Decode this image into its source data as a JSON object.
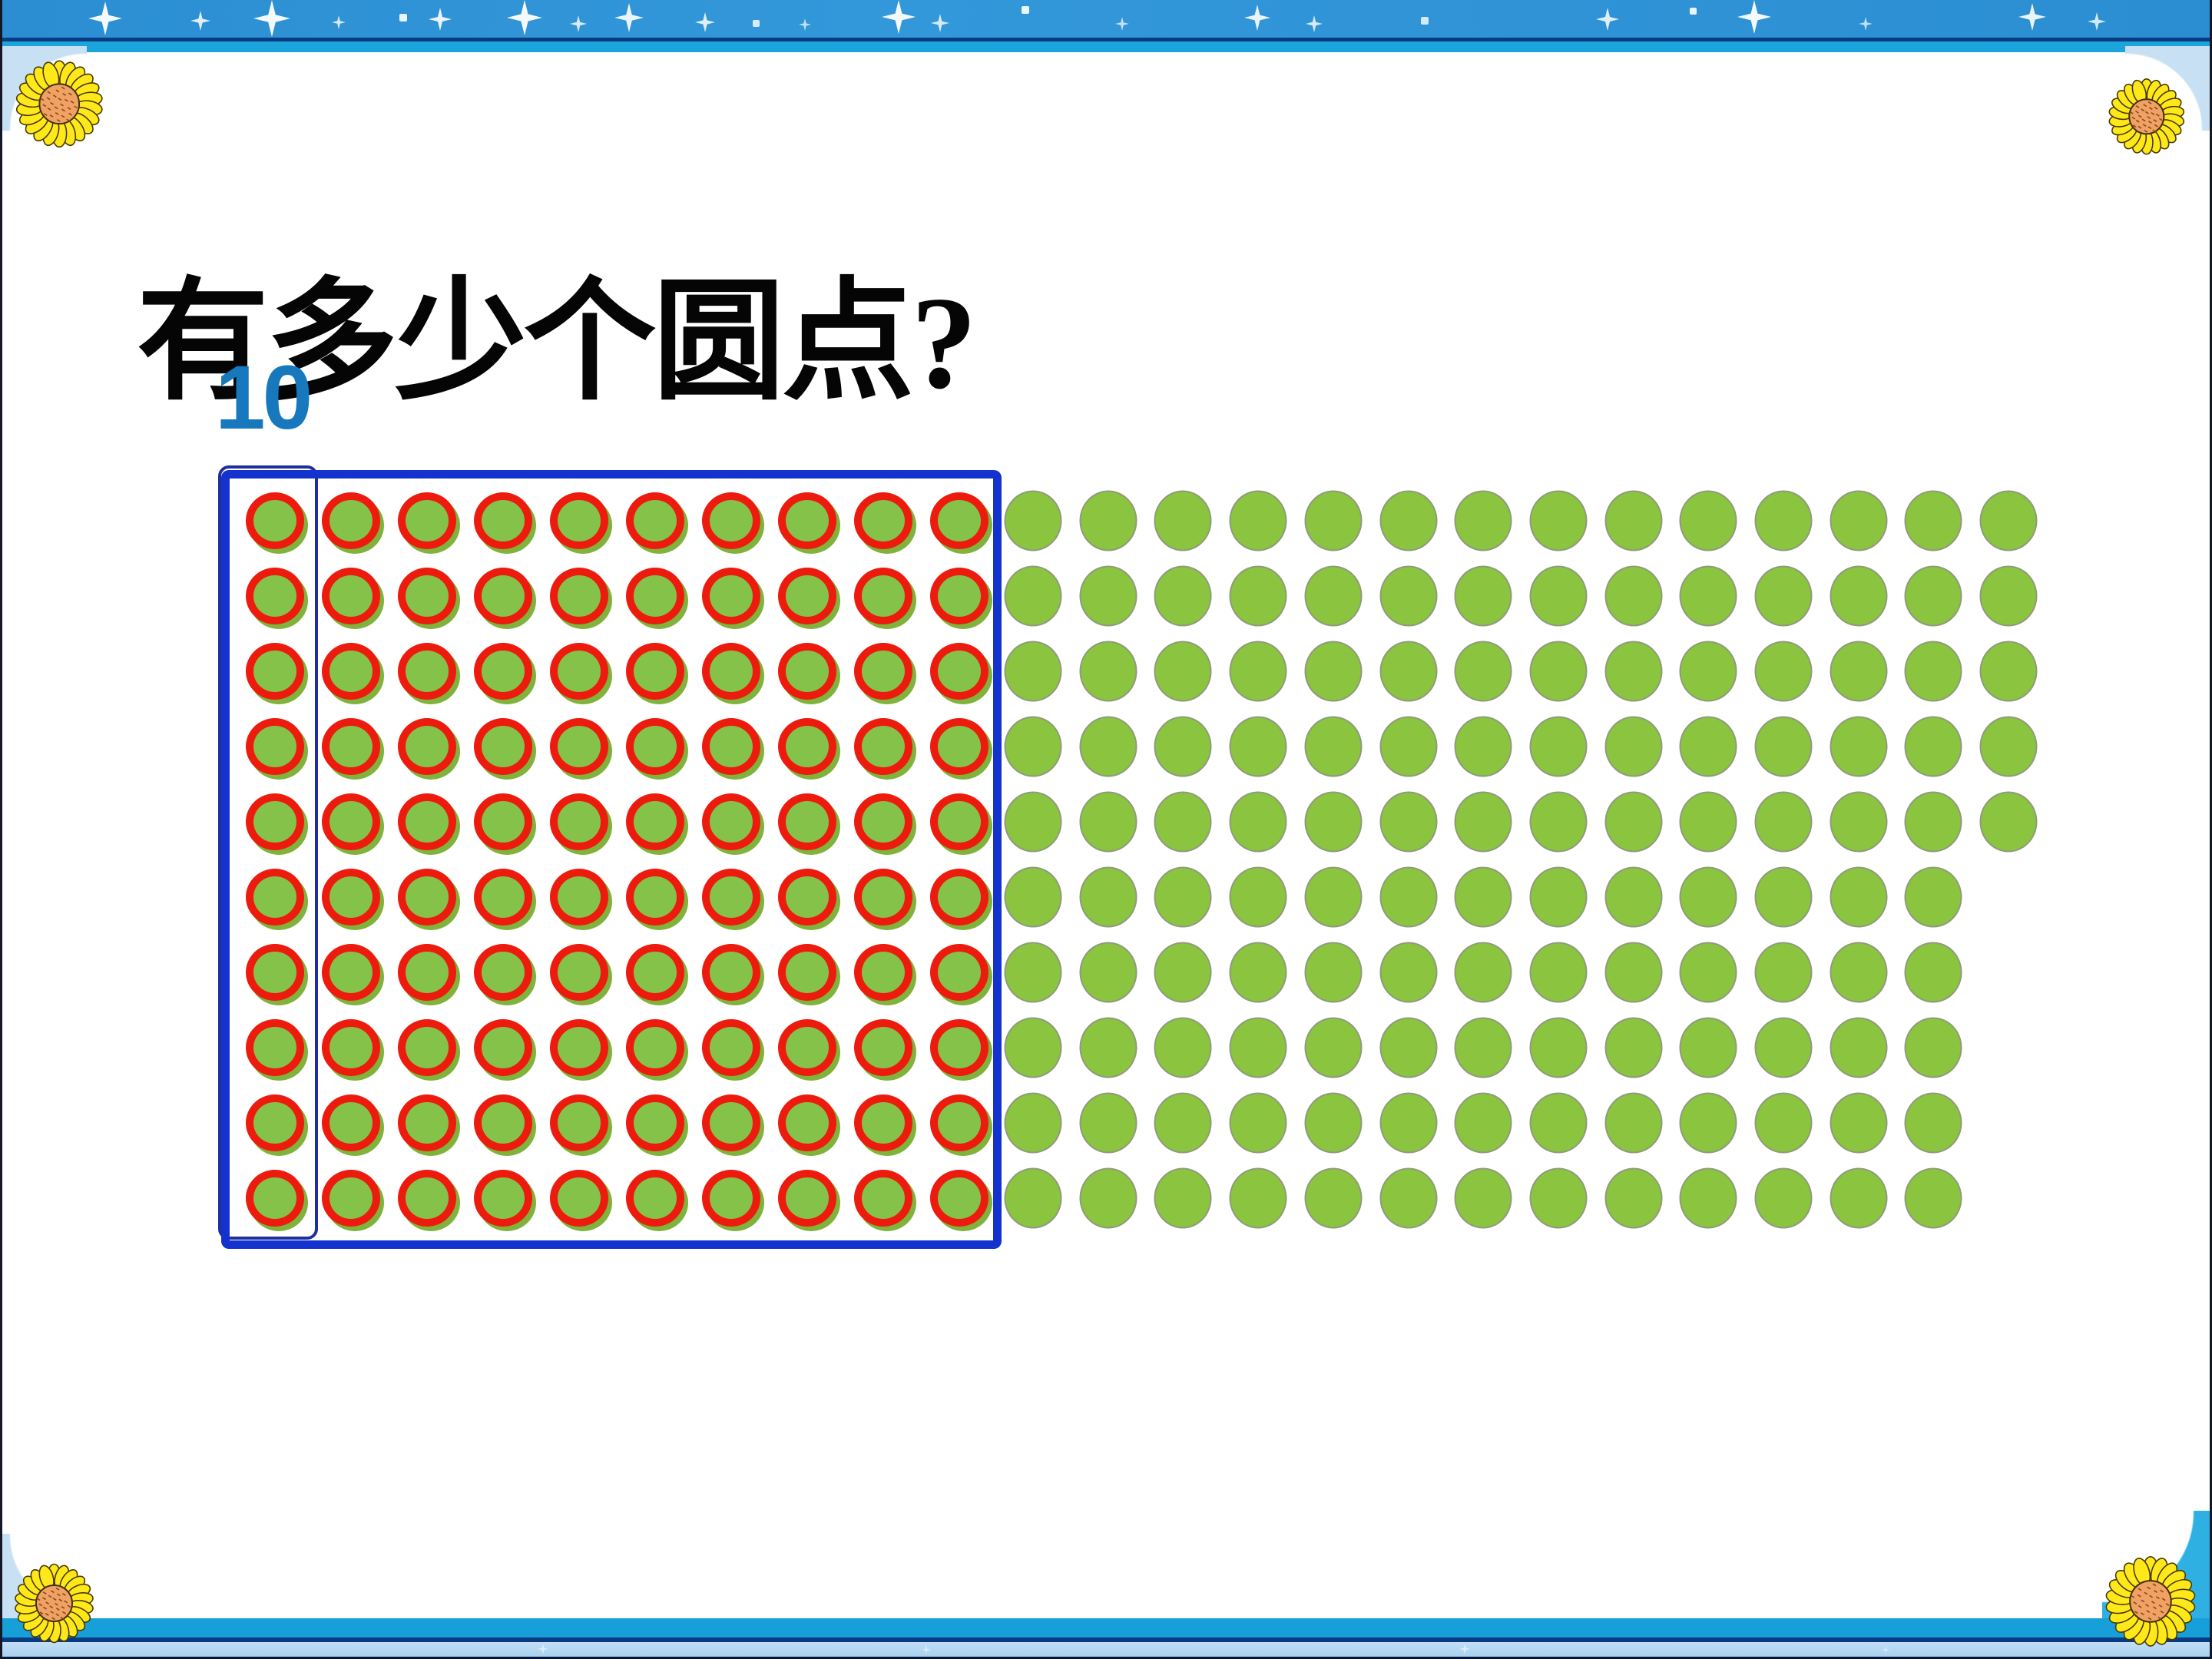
{
  "slide": {
    "title": "有多少个圆点?",
    "group_label": "10"
  },
  "chart_data": {
    "type": "dot-diagram",
    "title": "有多少个圆点?",
    "circled_group": {
      "rows": 10,
      "columns": 10,
      "dot_count": 100,
      "dot_style": "green dot with red ring",
      "enclosure": "thick blue rectangle around all 100 dots",
      "first_column_box": "thin blue rectangle around first column of 10 dots",
      "first_column_box_label": "10"
    },
    "loose_group": {
      "row_dot_counts": [
        14,
        14,
        14,
        14,
        14,
        13,
        13,
        13,
        13,
        13
      ],
      "dot_count": 135,
      "dot_style": "plain green dot"
    },
    "total_dot_count": 235
  },
  "colors": {
    "dot_green": "#8BC43F",
    "ring_red": "#ED1B0E",
    "box_blue": "#1432CD",
    "column_box_blue": "#202F9F",
    "label_blue": "#1778BE",
    "top_band_blue": "#2E93D6",
    "cyan_band": "#1CA5DC",
    "navy_line": "#0A3B80",
    "bottom_light_band": "#A9D2F0"
  }
}
